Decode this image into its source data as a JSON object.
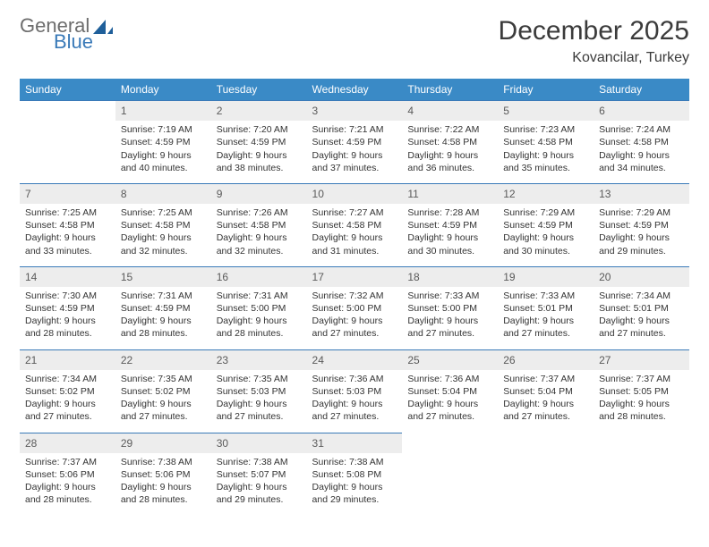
{
  "brand": {
    "part1": "General",
    "part2": "Blue"
  },
  "title": "December 2025",
  "location": "Kovancilar, Turkey",
  "colors": {
    "header_bg": "#3a8ac6",
    "header_text": "#ffffff",
    "rule": "#3a7ab8",
    "daynum_bg": "#ededed",
    "daynum_text": "#5a5a5a",
    "body_text": "#333333",
    "brand_gray": "#6d6d6d",
    "brand_blue": "#3a7ab8",
    "page_bg": "#ffffff"
  },
  "weekdays": [
    "Sunday",
    "Monday",
    "Tuesday",
    "Wednesday",
    "Thursday",
    "Friday",
    "Saturday"
  ],
  "weeks": [
    [
      null,
      {
        "n": "1",
        "sr": "Sunrise: 7:19 AM",
        "ss": "Sunset: 4:59 PM",
        "d1": "Daylight: 9 hours",
        "d2": "and 40 minutes."
      },
      {
        "n": "2",
        "sr": "Sunrise: 7:20 AM",
        "ss": "Sunset: 4:59 PM",
        "d1": "Daylight: 9 hours",
        "d2": "and 38 minutes."
      },
      {
        "n": "3",
        "sr": "Sunrise: 7:21 AM",
        "ss": "Sunset: 4:59 PM",
        "d1": "Daylight: 9 hours",
        "d2": "and 37 minutes."
      },
      {
        "n": "4",
        "sr": "Sunrise: 7:22 AM",
        "ss": "Sunset: 4:58 PM",
        "d1": "Daylight: 9 hours",
        "d2": "and 36 minutes."
      },
      {
        "n": "5",
        "sr": "Sunrise: 7:23 AM",
        "ss": "Sunset: 4:58 PM",
        "d1": "Daylight: 9 hours",
        "d2": "and 35 minutes."
      },
      {
        "n": "6",
        "sr": "Sunrise: 7:24 AM",
        "ss": "Sunset: 4:58 PM",
        "d1": "Daylight: 9 hours",
        "d2": "and 34 minutes."
      }
    ],
    [
      {
        "n": "7",
        "sr": "Sunrise: 7:25 AM",
        "ss": "Sunset: 4:58 PM",
        "d1": "Daylight: 9 hours",
        "d2": "and 33 minutes."
      },
      {
        "n": "8",
        "sr": "Sunrise: 7:25 AM",
        "ss": "Sunset: 4:58 PM",
        "d1": "Daylight: 9 hours",
        "d2": "and 32 minutes."
      },
      {
        "n": "9",
        "sr": "Sunrise: 7:26 AM",
        "ss": "Sunset: 4:58 PM",
        "d1": "Daylight: 9 hours",
        "d2": "and 32 minutes."
      },
      {
        "n": "10",
        "sr": "Sunrise: 7:27 AM",
        "ss": "Sunset: 4:58 PM",
        "d1": "Daylight: 9 hours",
        "d2": "and 31 minutes."
      },
      {
        "n": "11",
        "sr": "Sunrise: 7:28 AM",
        "ss": "Sunset: 4:59 PM",
        "d1": "Daylight: 9 hours",
        "d2": "and 30 minutes."
      },
      {
        "n": "12",
        "sr": "Sunrise: 7:29 AM",
        "ss": "Sunset: 4:59 PM",
        "d1": "Daylight: 9 hours",
        "d2": "and 30 minutes."
      },
      {
        "n": "13",
        "sr": "Sunrise: 7:29 AM",
        "ss": "Sunset: 4:59 PM",
        "d1": "Daylight: 9 hours",
        "d2": "and 29 minutes."
      }
    ],
    [
      {
        "n": "14",
        "sr": "Sunrise: 7:30 AM",
        "ss": "Sunset: 4:59 PM",
        "d1": "Daylight: 9 hours",
        "d2": "and 28 minutes."
      },
      {
        "n": "15",
        "sr": "Sunrise: 7:31 AM",
        "ss": "Sunset: 4:59 PM",
        "d1": "Daylight: 9 hours",
        "d2": "and 28 minutes."
      },
      {
        "n": "16",
        "sr": "Sunrise: 7:31 AM",
        "ss": "Sunset: 5:00 PM",
        "d1": "Daylight: 9 hours",
        "d2": "and 28 minutes."
      },
      {
        "n": "17",
        "sr": "Sunrise: 7:32 AM",
        "ss": "Sunset: 5:00 PM",
        "d1": "Daylight: 9 hours",
        "d2": "and 27 minutes."
      },
      {
        "n": "18",
        "sr": "Sunrise: 7:33 AM",
        "ss": "Sunset: 5:00 PM",
        "d1": "Daylight: 9 hours",
        "d2": "and 27 minutes."
      },
      {
        "n": "19",
        "sr": "Sunrise: 7:33 AM",
        "ss": "Sunset: 5:01 PM",
        "d1": "Daylight: 9 hours",
        "d2": "and 27 minutes."
      },
      {
        "n": "20",
        "sr": "Sunrise: 7:34 AM",
        "ss": "Sunset: 5:01 PM",
        "d1": "Daylight: 9 hours",
        "d2": "and 27 minutes."
      }
    ],
    [
      {
        "n": "21",
        "sr": "Sunrise: 7:34 AM",
        "ss": "Sunset: 5:02 PM",
        "d1": "Daylight: 9 hours",
        "d2": "and 27 minutes."
      },
      {
        "n": "22",
        "sr": "Sunrise: 7:35 AM",
        "ss": "Sunset: 5:02 PM",
        "d1": "Daylight: 9 hours",
        "d2": "and 27 minutes."
      },
      {
        "n": "23",
        "sr": "Sunrise: 7:35 AM",
        "ss": "Sunset: 5:03 PM",
        "d1": "Daylight: 9 hours",
        "d2": "and 27 minutes."
      },
      {
        "n": "24",
        "sr": "Sunrise: 7:36 AM",
        "ss": "Sunset: 5:03 PM",
        "d1": "Daylight: 9 hours",
        "d2": "and 27 minutes."
      },
      {
        "n": "25",
        "sr": "Sunrise: 7:36 AM",
        "ss": "Sunset: 5:04 PM",
        "d1": "Daylight: 9 hours",
        "d2": "and 27 minutes."
      },
      {
        "n": "26",
        "sr": "Sunrise: 7:37 AM",
        "ss": "Sunset: 5:04 PM",
        "d1": "Daylight: 9 hours",
        "d2": "and 27 minutes."
      },
      {
        "n": "27",
        "sr": "Sunrise: 7:37 AM",
        "ss": "Sunset: 5:05 PM",
        "d1": "Daylight: 9 hours",
        "d2": "and 28 minutes."
      }
    ],
    [
      {
        "n": "28",
        "sr": "Sunrise: 7:37 AM",
        "ss": "Sunset: 5:06 PM",
        "d1": "Daylight: 9 hours",
        "d2": "and 28 minutes."
      },
      {
        "n": "29",
        "sr": "Sunrise: 7:38 AM",
        "ss": "Sunset: 5:06 PM",
        "d1": "Daylight: 9 hours",
        "d2": "and 28 minutes."
      },
      {
        "n": "30",
        "sr": "Sunrise: 7:38 AM",
        "ss": "Sunset: 5:07 PM",
        "d1": "Daylight: 9 hours",
        "d2": "and 29 minutes."
      },
      {
        "n": "31",
        "sr": "Sunrise: 7:38 AM",
        "ss": "Sunset: 5:08 PM",
        "d1": "Daylight: 9 hours",
        "d2": "and 29 minutes."
      },
      null,
      null,
      null
    ]
  ]
}
